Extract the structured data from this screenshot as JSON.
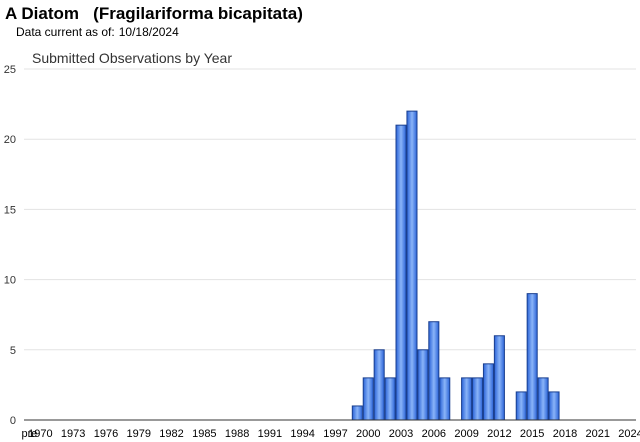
{
  "page": {
    "title_common": "A Diatom",
    "title_scientific": "(Fragilariforma bicapitata)",
    "data_current_label": "Data current as of:",
    "data_current_date": "10/18/2024"
  },
  "colors": {
    "bar_top": "#8ab4f8",
    "bar_bottom": "#2a63d8",
    "bar_stroke": "#1a3f8f",
    "grid": "#e3e3e3"
  },
  "chart_data": {
    "type": "bar",
    "title": "Submitted Observations by Year",
    "xlabel": "",
    "ylabel": "",
    "ylim": [
      0,
      25
    ],
    "yticks": [
      0,
      5,
      10,
      15,
      20,
      25
    ],
    "grid": true,
    "legend": "none",
    "categories": [
      "pre 1970",
      "1970",
      "1971",
      "1972",
      "1973",
      "1974",
      "1975",
      "1976",
      "1977",
      "1978",
      "1979",
      "1980",
      "1981",
      "1982",
      "1983",
      "1984",
      "1985",
      "1986",
      "1987",
      "1988",
      "1989",
      "1990",
      "1991",
      "1992",
      "1993",
      "1994",
      "1995",
      "1996",
      "1997",
      "1998",
      "1999",
      "2000",
      "2001",
      "2002",
      "2003",
      "2004",
      "2005",
      "2006",
      "2007",
      "2008",
      "2009",
      "2010",
      "2011",
      "2012",
      "2013",
      "2014",
      "2015",
      "2016",
      "2017",
      "2018",
      "2019",
      "2020",
      "2021",
      "2022",
      "2023",
      "2024"
    ],
    "values": [
      0,
      0,
      0,
      0,
      0,
      0,
      0,
      0,
      0,
      0,
      0,
      0,
      0,
      0,
      0,
      0,
      0,
      0,
      0,
      0,
      0,
      0,
      0,
      0,
      0,
      0,
      0,
      0,
      0,
      0,
      1,
      3,
      5,
      3,
      21,
      22,
      5,
      7,
      3,
      0,
      3,
      3,
      4,
      6,
      0,
      2,
      9,
      3,
      2,
      0,
      0,
      0,
      0,
      0,
      0,
      0
    ],
    "xtick_labels": [
      "pre",
      "1970",
      "1973",
      "1976",
      "1979",
      "1982",
      "1985",
      "1988",
      "1991",
      "1994",
      "1997",
      "2000",
      "2003",
      "2006",
      "2009",
      "2012",
      "2015",
      "2018",
      "2021",
      "2024"
    ],
    "xtick_positions": [
      0,
      1,
      4,
      7,
      10,
      13,
      16,
      19,
      22,
      25,
      28,
      31,
      34,
      37,
      40,
      43,
      46,
      49,
      52,
      55
    ]
  }
}
